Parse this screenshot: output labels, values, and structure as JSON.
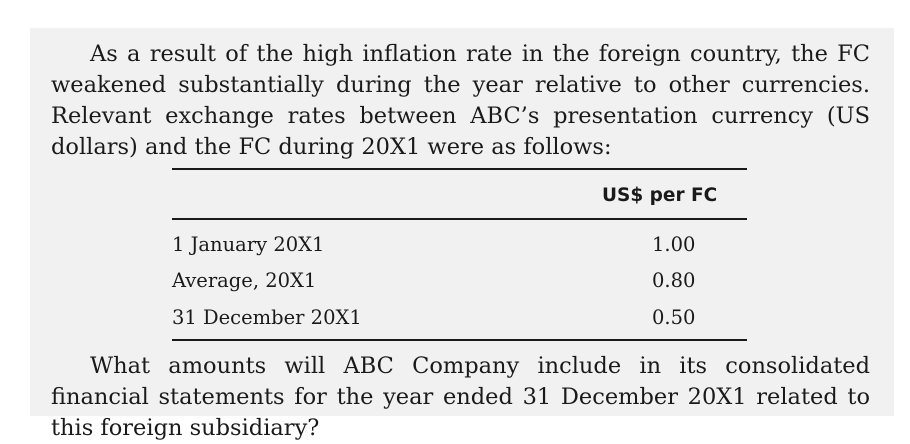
{
  "paragraph_1": "As a result of the high inflation rate in the foreign country, the FC weakened substantially during the year relative to other currencies. Relevant exchange rates between ABC’s presentation currency (US dollars) and the FC during 20X1 were as follows:",
  "table": {
    "column_header": "US$ per FC",
    "rows": [
      {
        "label": "1 January 20X1",
        "value": "1.00"
      },
      {
        "label": "Average, 20X1",
        "value": "0.80"
      },
      {
        "label": "31 December 20X1",
        "value": "0.50"
      }
    ]
  },
  "paragraph_2": "What amounts will ABC Company include in its consolidated financial state­ments for the year ended 31 December 20X1 related to this foreign subsidiary?"
}
